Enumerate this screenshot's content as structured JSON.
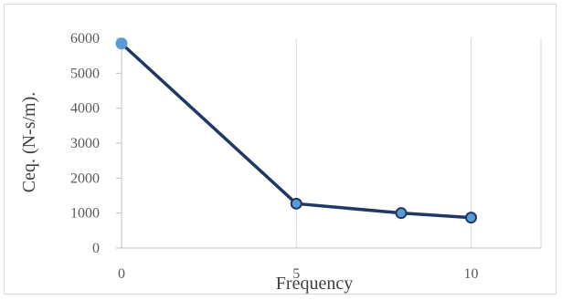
{
  "chart_data": {
    "type": "line",
    "title": "",
    "xlabel": "Frequency",
    "ylabel": "Ceq. (N-s/m).",
    "x": [
      0,
      5,
      8,
      10
    ],
    "series": [
      {
        "values": [
          5850,
          1270,
          1000,
          870
        ]
      }
    ],
    "xlim": [
      0,
      12
    ],
    "ylim": [
      0,
      6000
    ],
    "x_ticks": [
      "0",
      "5",
      "10"
    ],
    "y_ticks": [
      "0",
      "1000",
      "2000",
      "3000",
      "4000",
      "5000",
      "6000"
    ],
    "grid": "vertical",
    "legend": "none",
    "colors": {
      "line": "#1f3864",
      "marker_fill": "#5b9bd5",
      "first_marker_fill": "#5b9bd5",
      "grid": "#d9d9d9",
      "axis": "#bfbfbf"
    }
  }
}
